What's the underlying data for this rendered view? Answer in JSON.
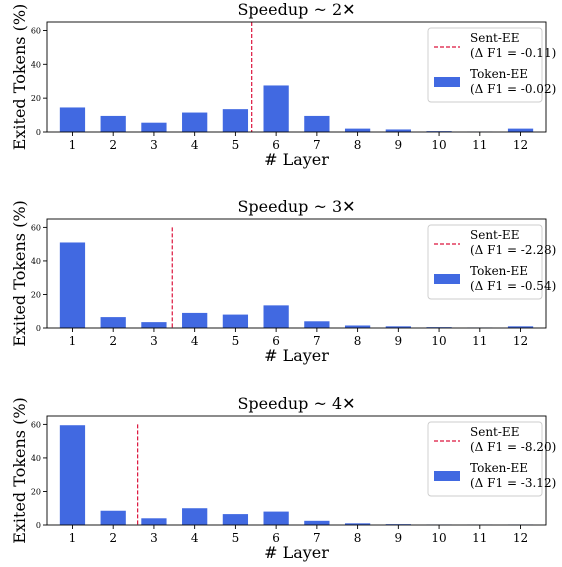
{
  "chart_data": [
    {
      "type": "bar",
      "title": "Speedup ~ 2✕",
      "xlabel": "# Layer",
      "ylabel": "Exited Tokens (%)",
      "categories": [
        "1",
        "2",
        "3",
        "4",
        "5",
        "6",
        "7",
        "8",
        "9",
        "10",
        "11",
        "12"
      ],
      "yticks": [
        "0",
        "20",
        "40",
        "60"
      ],
      "ylim": [
        0,
        65
      ],
      "series": [
        {
          "name": "Token-EE",
          "label_line2": "(Δ F1 = -0.02)",
          "color": "#4169e1",
          "values": [
            14.5,
            9.5,
            5.5,
            11.5,
            13.5,
            27.5,
            9.5,
            2,
            1.5,
            0.5,
            0.2,
            2
          ]
        }
      ],
      "vline": {
        "name": "Sent-EE",
        "label_line2": "(Δ F1 = -0.11)",
        "color": "#dc143c",
        "x": 5.4
      },
      "legend": "top-right"
    },
    {
      "type": "bar",
      "title": "Speedup ~ 3✕",
      "xlabel": "# Layer",
      "ylabel": "Exited Tokens (%)",
      "categories": [
        "1",
        "2",
        "3",
        "4",
        "5",
        "6",
        "7",
        "8",
        "9",
        "10",
        "11",
        "12"
      ],
      "yticks": [
        "0",
        "20",
        "40",
        "60"
      ],
      "ylim": [
        0,
        65
      ],
      "series": [
        {
          "name": "Token-EE",
          "label_line2": "(Δ F1 = -0.54)",
          "color": "#4169e1",
          "values": [
            51,
            6.5,
            3.5,
            9,
            8,
            13.5,
            4,
            1.5,
            1,
            0.5,
            0.3,
            1
          ]
        }
      ],
      "vline": {
        "name": "Sent-EE",
        "label_line2": "(Δ F1 = -2.28)",
        "color": "#dc143c",
        "x": 3.45,
        "top": 60
      },
      "legend": "top-right"
    },
    {
      "type": "bar",
      "title": "Speedup ~ 4✕",
      "xlabel": "# Layer",
      "ylabel": "Exited Tokens (%)",
      "categories": [
        "1",
        "2",
        "3",
        "4",
        "5",
        "6",
        "7",
        "8",
        "9",
        "10",
        "11",
        "12"
      ],
      "yticks": [
        "0",
        "20",
        "40",
        "60"
      ],
      "ylim": [
        0,
        65
      ],
      "series": [
        {
          "name": "Token-EE",
          "label_line2": "(Δ F1 = -3.12)",
          "color": "#4169e1",
          "values": [
            59.5,
            8.5,
            4,
            10,
            6.5,
            8,
            2.5,
            1,
            0.5,
            0.3,
            0.2,
            0.3
          ]
        }
      ],
      "vline": {
        "name": "Sent-EE",
        "label_line2": "(Δ F1 = -8.20)",
        "color": "#dc143c",
        "x": 2.6,
        "top": 60
      },
      "legend": "top-right"
    }
  ]
}
